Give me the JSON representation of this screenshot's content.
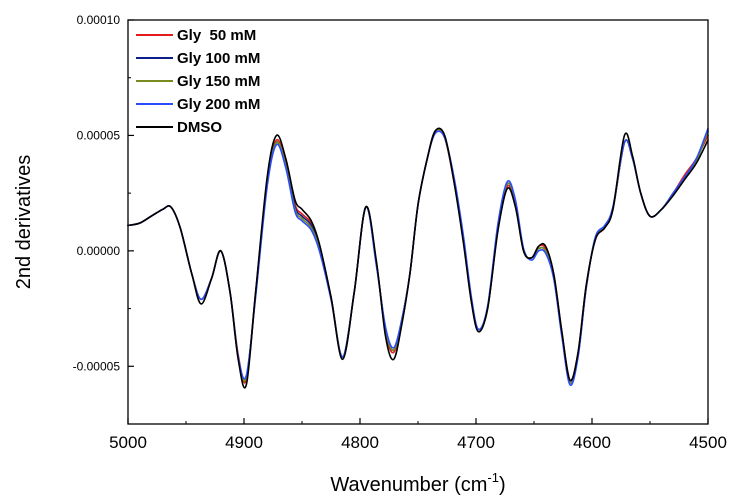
{
  "chart_data": {
    "type": "line",
    "xlabel": "Wavenumber (cm",
    "xlabel_sup": "-1",
    "xlabel_end": ")",
    "ylabel": "2nd derivatives",
    "xlim": [
      5000,
      4500
    ],
    "ylim": [
      -7.5e-05,
      0.0001
    ],
    "x_ticks": [
      5000,
      4900,
      4800,
      4700,
      4600,
      4500
    ],
    "x_tick_labels": [
      "5000",
      "4900",
      "4800",
      "4700",
      "4600",
      "4500"
    ],
    "y_ticks": [
      -5e-05,
      0,
      5e-05,
      0.0001
    ],
    "y_tick_labels": [
      "-0.00005",
      "0.00000",
      "0.00005",
      "0.00010"
    ],
    "legend_position": "top-left",
    "grid": false,
    "x": [
      5000,
      4990,
      4980,
      4970,
      4963,
      4955,
      4945,
      4937,
      4928,
      4920,
      4912,
      4905,
      4898,
      4890,
      4880,
      4872,
      4864,
      4856,
      4850,
      4842,
      4835,
      4825,
      4815,
      4805,
      4795,
      4786,
      4778,
      4771,
      4764,
      4757,
      4750,
      4742,
      4735,
      4727,
      4719,
      4711,
      4704,
      4698,
      4690,
      4681,
      4673,
      4666,
      4659,
      4652,
      4646,
      4640,
      4633,
      4626,
      4619,
      4612,
      4605,
      4597,
      4589,
      4582,
      4572,
      4565,
      4558,
      4550,
      4540,
      4530,
      4520,
      4510,
      4500
    ],
    "series": [
      {
        "name": "Gly  50 mM",
        "color": "#e41a1c",
        "y": [
          1.1e-05,
          1.2e-05,
          1.5e-05,
          1.8e-05,
          1.9e-05,
          1e-05,
          -1e-05,
          -2.1e-05,
          -1.2e-05,
          0.0,
          -1.8e-05,
          -4.5e-05,
          -5.6e-05,
          -1.8e-05,
          3e-05,
          4.8e-05,
          3.8e-05,
          2e-05,
          1.6e-05,
          1.2e-05,
          2e-06,
          -2e-05,
          -4.6e-05,
          -1.8e-05,
          1.9e-05,
          -5e-06,
          -3.5e-05,
          -4.4e-05,
          -3e-05,
          -1e-05,
          2e-05,
          4e-05,
          5.2e-05,
          4.9e-05,
          3e-05,
          5e-06,
          -2.2e-05,
          -3.4e-05,
          -2.5e-05,
          1e-05,
          2.8e-05,
          2e-05,
          0.0,
          -3e-06,
          2e-06,
          1e-06,
          -1e-05,
          -3.5e-05,
          -5.6e-05,
          -4.4e-05,
          -1.5e-05,
          5e-06,
          1e-05,
          1.8e-05,
          4.7e-05,
          4e-05,
          2.5e-05,
          1.5e-05,
          1.8e-05,
          2.5e-05,
          3.3e-05,
          4e-05,
          5e-05
        ]
      },
      {
        "name": "Gly 100 mM",
        "color": "#0a1e8c",
        "y": [
          1.1e-05,
          1.2e-05,
          1.5e-05,
          1.8e-05,
          1.9e-05,
          1e-05,
          -1e-05,
          -2.1e-05,
          -1.2e-05,
          0.0,
          -1.8e-05,
          -4.6e-05,
          -5.5e-05,
          -1.9e-05,
          3e-05,
          4.7e-05,
          3.7e-05,
          1.9e-05,
          1.5e-05,
          1.1e-05,
          1e-06,
          -2e-05,
          -4.6e-05,
          -1.8e-05,
          1.9e-05,
          -5e-06,
          -3.4e-05,
          -4.3e-05,
          -3e-05,
          -1e-05,
          2e-05,
          4e-05,
          5.2e-05,
          4.9e-05,
          3.1e-05,
          6e-06,
          -2.1e-05,
          -3.4e-05,
          -2.5e-05,
          1.1e-05,
          2.9e-05,
          2.1e-05,
          0.0,
          -3e-06,
          1e-06,
          0.0,
          -1.1e-05,
          -3.6e-05,
          -5.7e-05,
          -4.5e-05,
          -1.6e-05,
          6e-06,
          1e-05,
          1.8e-05,
          4.7e-05,
          4e-05,
          2.5e-05,
          1.5e-05,
          1.8e-05,
          2.5e-05,
          3.2e-05,
          3.9e-05,
          5.2e-05
        ]
      },
      {
        "name": "Gly 150 mM",
        "color": "#7a8a1e",
        "y": [
          1.1e-05,
          1.2e-05,
          1.5e-05,
          1.8e-05,
          1.9e-05,
          1e-05,
          -1e-05,
          -2.1e-05,
          -1.2e-05,
          0.0,
          -1.8e-05,
          -4.6e-05,
          -5.5e-05,
          -1.9e-05,
          2.9e-05,
          4.7e-05,
          3.7e-05,
          1.8e-05,
          1.4e-05,
          1e-05,
          1e-06,
          -2e-05,
          -4.6e-05,
          -1.8e-05,
          1.9e-05,
          -5e-06,
          -3.4e-05,
          -4.3e-05,
          -3e-05,
          -1e-05,
          2e-05,
          4e-05,
          5.2e-05,
          4.9e-05,
          3.1e-05,
          6e-06,
          -2.1e-05,
          -3.4e-05,
          -2.5e-05,
          1.1e-05,
          2.9e-05,
          2.1e-05,
          0.0,
          -3e-06,
          1e-06,
          0.0,
          -1.1e-05,
          -3.6e-05,
          -5.7e-05,
          -4.5e-05,
          -1.6e-05,
          6e-06,
          1e-05,
          1.8e-05,
          4.7e-05,
          4e-05,
          2.5e-05,
          1.5e-05,
          1.8e-05,
          2.5e-05,
          3.2e-05,
          3.9e-05,
          5.2e-05
        ]
      },
      {
        "name": "Gly 200 mM",
        "color": "#2a4dff",
        "y": [
          1.1e-05,
          1.2e-05,
          1.5e-05,
          1.8e-05,
          1.9e-05,
          1e-05,
          -1e-05,
          -2.1e-05,
          -1.2e-05,
          0.0,
          -1.8e-05,
          -4.6e-05,
          -5.4e-05,
          -2e-05,
          2.8e-05,
          4.6e-05,
          3.6e-05,
          1.7e-05,
          1.3e-05,
          9e-06,
          0.0,
          -2.1e-05,
          -4.6e-05,
          -1.8e-05,
          1.9e-05,
          -6e-06,
          -3.3e-05,
          -4.2e-05,
          -3e-05,
          -1e-05,
          2e-05,
          4e-05,
          5.1e-05,
          4.9e-05,
          3.2e-05,
          7e-06,
          -2e-05,
          -3.4e-05,
          -2.4e-05,
          1.2e-05,
          3e-05,
          2.2e-05,
          1e-06,
          -4e-06,
          0.0,
          -1e-06,
          -1.2e-05,
          -3.7e-05,
          -5.8e-05,
          -4.6e-05,
          -1.6e-05,
          6e-06,
          1.1e-05,
          1.9e-05,
          4.7e-05,
          4e-05,
          2.5e-05,
          1.5e-05,
          1.8e-05,
          2.5e-05,
          3.2e-05,
          4e-05,
          5.3e-05
        ]
      },
      {
        "name": "DMSO",
        "color": "#000000",
        "y": [
          1.1e-05,
          1.2e-05,
          1.5e-05,
          1.8e-05,
          1.9e-05,
          1e-05,
          -1e-05,
          -2.3e-05,
          -1.2e-05,
          0.0,
          -1.8e-05,
          -4.7e-05,
          -5.8e-05,
          -1.8e-05,
          3.2e-05,
          5e-05,
          4e-05,
          2.2e-05,
          1.8e-05,
          1.3e-05,
          3e-06,
          -2e-05,
          -4.7e-05,
          -1.8e-05,
          1.9e-05,
          -4e-06,
          -3.7e-05,
          -4.7e-05,
          -3.2e-05,
          -1e-05,
          2e-05,
          4e-05,
          5.2e-05,
          5e-05,
          3e-05,
          4e-06,
          -2.2e-05,
          -3.5e-05,
          -2.5e-05,
          9e-06,
          2.7e-05,
          1.9e-05,
          0.0,
          -3e-06,
          2e-06,
          2e-06,
          -1e-05,
          -3.5e-05,
          -5.6e-05,
          -4.4e-05,
          -1.5e-05,
          5e-06,
          1e-05,
          1.8e-05,
          5e-05,
          4.1e-05,
          2.5e-05,
          1.5e-05,
          1.8e-05,
          2.4e-05,
          3.1e-05,
          3.8e-05,
          4.8e-05
        ]
      }
    ]
  }
}
